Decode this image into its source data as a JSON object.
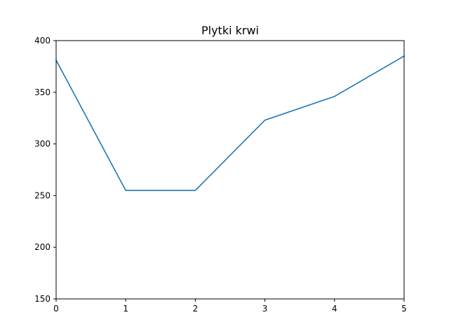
{
  "chart_data": {
    "type": "line",
    "title": "Plytki krwi",
    "xlabel": "",
    "ylabel": "",
    "x": [
      0,
      1,
      2,
      3,
      4,
      5
    ],
    "series": [
      {
        "values": [
          381,
          255,
          255,
          323,
          346,
          385
        ],
        "color": "#1f77b4"
      }
    ],
    "xlim": [
      0,
      5
    ],
    "ylim": [
      150,
      400
    ],
    "xticks": [
      "0",
      "1",
      "2",
      "3",
      "4",
      "5"
    ],
    "yticks": [
      "150",
      "200",
      "250",
      "300",
      "350",
      "400"
    ],
    "grid": false
  }
}
